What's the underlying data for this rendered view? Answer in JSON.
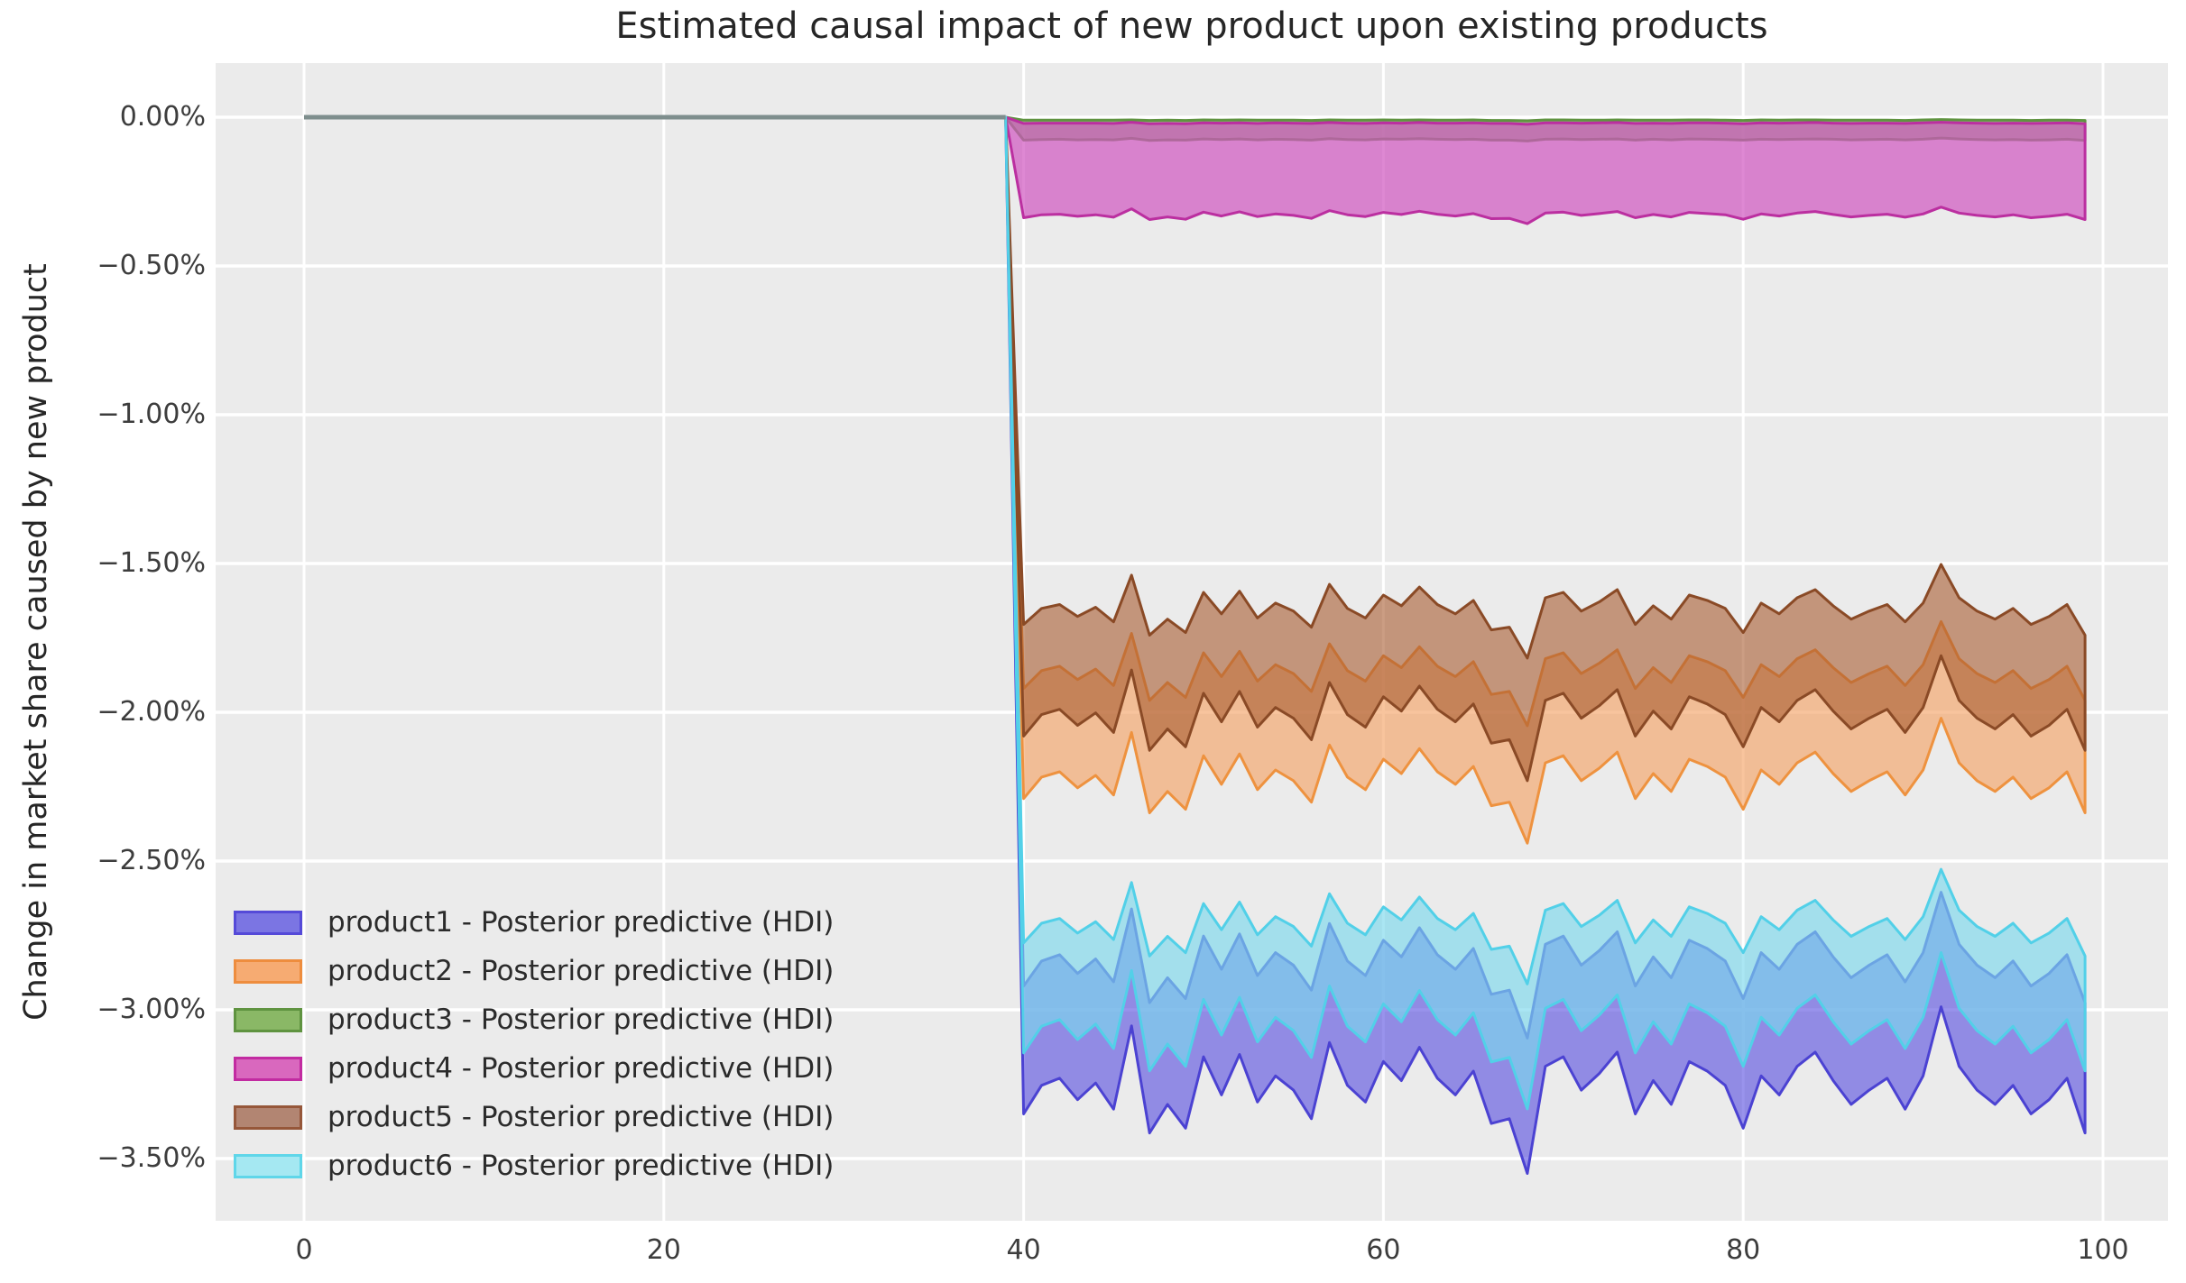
{
  "chart_data": {
    "type": "area",
    "title": "Estimated causal impact of new product upon existing products",
    "ylabel": "Change in market share caused by new product",
    "xlabel": "",
    "grid": true,
    "legend_position": "lower left",
    "panel_bg": "#ebebeb",
    "grid_color": "#ffffff",
    "zero_line": {
      "color": "#7e8e8d",
      "x_start": 0,
      "x_end": 39,
      "value": 0
    },
    "xlim": [
      -4.9,
      103.6
    ],
    "ylim_percent": [
      -3.71,
      0.18
    ],
    "x_ticks": [
      0,
      20,
      40,
      60,
      80,
      100
    ],
    "y_tick_labels": [
      "0.00%",
      "−0.50%",
      "−1.00%",
      "−1.50%",
      "−2.00%",
      "−2.50%",
      "−3.00%",
      "−3.50%"
    ],
    "y_tick_values": [
      0,
      -0.5,
      -1.0,
      -1.5,
      -2.0,
      -2.5,
      -3.0,
      -3.5
    ],
    "intervention_x": 39,
    "hdi_x": [
      40,
      41,
      42,
      43,
      44,
      45,
      46,
      47,
      48,
      49,
      50,
      51,
      52,
      53,
      54,
      55,
      56,
      57,
      58,
      59,
      60,
      61,
      62,
      63,
      64,
      65,
      66,
      67,
      68,
      69,
      70,
      71,
      72,
      73,
      74,
      75,
      76,
      77,
      78,
      79,
      80,
      81,
      82,
      83,
      84,
      85,
      86,
      87,
      88,
      89,
      90,
      91,
      92,
      93,
      94,
      95,
      96,
      97,
      98,
      99
    ],
    "series": [
      {
        "name": "product1 - Posterior predictive (HDI)",
        "key": "product1",
        "fill": "#5a50e0",
        "fill_opacity": 0.62,
        "edge": "#4b42d2",
        "legend_fill": "#7b75e3",
        "legend_edge": "#554ad8",
        "hi": [
          -2.92,
          -2.836,
          -2.815,
          -2.878,
          -2.829,
          -2.906,
          -2.661,
          -2.976,
          -2.892,
          -2.962,
          -2.752,
          -2.864,
          -2.745,
          -2.885,
          -2.808,
          -2.85,
          -2.934,
          -2.71,
          -2.836,
          -2.885,
          -2.766,
          -2.822,
          -2.724,
          -2.815,
          -2.864,
          -2.794,
          -2.948,
          -2.934,
          -3.095,
          -2.78,
          -2.752,
          -2.85,
          -2.801,
          -2.738,
          -2.92,
          -2.822,
          -2.892,
          -2.766,
          -2.794,
          -2.836,
          -2.962,
          -2.808,
          -2.864,
          -2.78,
          -2.738,
          -2.822,
          -2.892,
          -2.85,
          -2.815,
          -2.906,
          -2.808,
          -2.605,
          -2.78,
          -2.85,
          -2.892,
          -2.836,
          -2.92,
          -2.878,
          -2.815,
          -2.976
        ],
        "lo": [
          -3.35,
          -3.254,
          -3.23,
          -3.302,
          -3.246,
          -3.334,
          -3.054,
          -3.414,
          -3.318,
          -3.398,
          -3.158,
          -3.286,
          -3.15,
          -3.31,
          -3.222,
          -3.27,
          -3.366,
          -3.11,
          -3.254,
          -3.31,
          -3.174,
          -3.238,
          -3.126,
          -3.23,
          -3.286,
          -3.206,
          -3.382,
          -3.366,
          -3.55,
          -3.19,
          -3.158,
          -3.27,
          -3.214,
          -3.142,
          -3.35,
          -3.238,
          -3.318,
          -3.174,
          -3.206,
          -3.254,
          -3.398,
          -3.222,
          -3.286,
          -3.19,
          -3.142,
          -3.238,
          -3.318,
          -3.27,
          -3.23,
          -3.334,
          -3.222,
          -2.99,
          -3.19,
          -3.27,
          -3.318,
          -3.254,
          -3.35,
          -3.302,
          -3.23,
          -3.414
        ]
      },
      {
        "name": "product2 - Posterior predictive (HDI)",
        "key": "product2",
        "fill": "#f5a469",
        "fill_opacity": 0.65,
        "edge": "#ee923f",
        "legend_fill": "#f6ab72",
        "legend_edge": "#ee8d3e",
        "hi": [
          -1.92,
          -1.86,
          -1.845,
          -1.89,
          -1.855,
          -1.91,
          -1.735,
          -1.96,
          -1.9,
          -1.95,
          -1.8,
          -1.88,
          -1.795,
          -1.895,
          -1.84,
          -1.87,
          -1.93,
          -1.77,
          -1.86,
          -1.895,
          -1.81,
          -1.85,
          -1.78,
          -1.845,
          -1.88,
          -1.83,
          -1.94,
          -1.93,
          -2.045,
          -1.82,
          -1.8,
          -1.87,
          -1.835,
          -1.79,
          -1.92,
          -1.85,
          -1.9,
          -1.81,
          -1.83,
          -1.86,
          -1.95,
          -1.84,
          -1.88,
          -1.82,
          -1.79,
          -1.85,
          -1.9,
          -1.87,
          -1.845,
          -1.91,
          -1.84,
          -1.695,
          -1.82,
          -1.87,
          -1.9,
          -1.86,
          -1.92,
          -1.89,
          -1.845,
          -1.96
        ],
        "lo": [
          -2.29,
          -2.218,
          -2.2,
          -2.254,
          -2.212,
          -2.278,
          -2.068,
          -2.338,
          -2.266,
          -2.326,
          -2.146,
          -2.242,
          -2.14,
          -2.26,
          -2.194,
          -2.23,
          -2.302,
          -2.11,
          -2.218,
          -2.26,
          -2.158,
          -2.206,
          -2.122,
          -2.2,
          -2.242,
          -2.182,
          -2.314,
          -2.302,
          -2.44,
          -2.17,
          -2.146,
          -2.23,
          -2.188,
          -2.134,
          -2.29,
          -2.206,
          -2.266,
          -2.158,
          -2.182,
          -2.218,
          -2.326,
          -2.194,
          -2.242,
          -2.17,
          -2.134,
          -2.206,
          -2.266,
          -2.23,
          -2.2,
          -2.278,
          -2.194,
          -2.02,
          -2.17,
          -2.23,
          -2.266,
          -2.218,
          -2.29,
          -2.254,
          -2.2,
          -2.338
        ]
      },
      {
        "name": "product3 - Posterior predictive (HDI)",
        "key": "product3",
        "fill": "#6aa04a",
        "fill_opacity": 0.6,
        "edge": "#5f9340",
        "legend_fill": "#8ab866",
        "legend_edge": "#5f9340",
        "hi": [
          -0.01,
          -0.01,
          -0.01,
          -0.01,
          -0.01,
          -0.01,
          -0.009,
          -0.011,
          -0.01,
          -0.011,
          -0.009,
          -0.01,
          -0.009,
          -0.01,
          -0.01,
          -0.01,
          -0.011,
          -0.009,
          -0.01,
          -0.01,
          -0.009,
          -0.01,
          -0.009,
          -0.01,
          -0.01,
          -0.009,
          -0.011,
          -0.011,
          -0.012,
          -0.009,
          -0.009,
          -0.01,
          -0.01,
          -0.009,
          -0.01,
          -0.01,
          -0.01,
          -0.009,
          -0.009,
          -0.01,
          -0.011,
          -0.009,
          -0.01,
          -0.009,
          -0.009,
          -0.01,
          -0.01,
          -0.01,
          -0.01,
          -0.011,
          -0.009,
          -0.008,
          -0.009,
          -0.01,
          -0.01,
          -0.01,
          -0.011,
          -0.01,
          -0.01,
          -0.011
        ],
        "lo": [
          -0.077,
          -0.075,
          -0.074,
          -0.076,
          -0.075,
          -0.076,
          -0.071,
          -0.078,
          -0.076,
          -0.077,
          -0.073,
          -0.075,
          -0.073,
          -0.076,
          -0.074,
          -0.075,
          -0.077,
          -0.072,
          -0.075,
          -0.076,
          -0.073,
          -0.074,
          -0.072,
          -0.074,
          -0.075,
          -0.074,
          -0.077,
          -0.077,
          -0.08,
          -0.074,
          -0.073,
          -0.075,
          -0.074,
          -0.073,
          -0.077,
          -0.074,
          -0.076,
          -0.073,
          -0.074,
          -0.075,
          -0.077,
          -0.074,
          -0.075,
          -0.074,
          -0.073,
          -0.074,
          -0.076,
          -0.075,
          -0.074,
          -0.076,
          -0.074,
          -0.07,
          -0.073,
          -0.075,
          -0.076,
          -0.075,
          -0.077,
          -0.076,
          -0.074,
          -0.078
        ]
      },
      {
        "name": "product4 - Posterior predictive (HDI)",
        "key": "product4",
        "fill": "#d055c0",
        "fill_opacity": 0.7,
        "edge": "#bb2fa0",
        "legend_fill": "#d968be",
        "legend_edge": "#c22ba1",
        "hi": [
          -0.021,
          -0.02,
          -0.02,
          -0.02,
          -0.02,
          -0.021,
          -0.017,
          -0.022,
          -0.021,
          -0.022,
          -0.019,
          -0.02,
          -0.019,
          -0.021,
          -0.019,
          -0.02,
          -0.021,
          -0.018,
          -0.02,
          -0.021,
          -0.019,
          -0.02,
          -0.018,
          -0.02,
          -0.02,
          -0.019,
          -0.021,
          -0.021,
          -0.024,
          -0.019,
          -0.019,
          -0.02,
          -0.019,
          -0.018,
          -0.021,
          -0.02,
          -0.021,
          -0.019,
          -0.019,
          -0.02,
          -0.022,
          -0.019,
          -0.02,
          -0.019,
          -0.018,
          -0.02,
          -0.021,
          -0.02,
          -0.02,
          -0.021,
          -0.019,
          -0.017,
          -0.019,
          -0.02,
          -0.021,
          -0.02,
          -0.021,
          -0.02,
          -0.019,
          -0.022
        ],
        "lo": [
          -0.338,
          -0.328,
          -0.326,
          -0.333,
          -0.328,
          -0.336,
          -0.308,
          -0.344,
          -0.335,
          -0.343,
          -0.319,
          -0.332,
          -0.318,
          -0.334,
          -0.325,
          -0.33,
          -0.34,
          -0.314,
          -0.328,
          -0.334,
          -0.32,
          -0.327,
          -0.316,
          -0.326,
          -0.332,
          -0.324,
          -0.341,
          -0.34,
          -0.358,
          -0.322,
          -0.319,
          -0.33,
          -0.324,
          -0.317,
          -0.338,
          -0.327,
          -0.335,
          -0.32,
          -0.324,
          -0.328,
          -0.343,
          -0.325,
          -0.332,
          -0.322,
          -0.317,
          -0.327,
          -0.335,
          -0.33,
          -0.326,
          -0.336,
          -0.325,
          -0.302,
          -0.322,
          -0.33,
          -0.335,
          -0.328,
          -0.338,
          -0.333,
          -0.326,
          -0.344
        ]
      },
      {
        "name": "product5 - Posterior predictive (HDI)",
        "key": "product5",
        "fill": "#a85b30",
        "fill_opacity": 0.6,
        "edge": "#8a4a26",
        "legend_fill": "#b28572",
        "legend_edge": "#96573a",
        "hi": [
          -1.705,
          -1.651,
          -1.638,
          -1.678,
          -1.647,
          -1.696,
          -1.539,
          -1.741,
          -1.687,
          -1.732,
          -1.597,
          -1.669,
          -1.593,
          -1.683,
          -1.633,
          -1.66,
          -1.714,
          -1.57,
          -1.651,
          -1.683,
          -1.606,
          -1.642,
          -1.579,
          -1.638,
          -1.669,
          -1.624,
          -1.723,
          -1.714,
          -1.818,
          -1.615,
          -1.597,
          -1.66,
          -1.629,
          -1.588,
          -1.705,
          -1.642,
          -1.687,
          -1.606,
          -1.624,
          -1.651,
          -1.732,
          -1.633,
          -1.669,
          -1.615,
          -1.588,
          -1.642,
          -1.687,
          -1.66,
          -1.638,
          -1.696,
          -1.633,
          -1.503,
          -1.615,
          -1.66,
          -1.687,
          -1.651,
          -1.705,
          -1.678,
          -1.638,
          -1.741
        ],
        "lo": [
          -2.08,
          -2.008,
          -1.99,
          -2.044,
          -2.002,
          -2.068,
          -1.858,
          -2.128,
          -2.056,
          -2.116,
          -1.936,
          -2.032,
          -1.93,
          -2.05,
          -1.984,
          -2.02,
          -2.092,
          -1.9,
          -2.008,
          -2.05,
          -1.948,
          -1.996,
          -1.912,
          -1.99,
          -2.032,
          -1.972,
          -2.104,
          -2.092,
          -2.23,
          -1.96,
          -1.936,
          -2.02,
          -1.978,
          -1.924,
          -2.08,
          -1.996,
          -2.056,
          -1.948,
          -1.972,
          -2.008,
          -2.116,
          -1.984,
          -2.032,
          -1.96,
          -1.924,
          -1.996,
          -2.056,
          -2.02,
          -1.99,
          -2.068,
          -1.984,
          -1.81,
          -1.96,
          -2.02,
          -2.056,
          -2.008,
          -2.08,
          -2.044,
          -1.99,
          -2.128
        ]
      },
      {
        "name": "product6 - Posterior predictive (HDI)",
        "key": "product6",
        "fill": "#7cd9ec",
        "fill_opacity": 0.65,
        "edge": "#52d0e8",
        "legend_fill": "#a5e8f2",
        "legend_edge": "#5fd6e9",
        "hi": [
          -2.775,
          -2.709,
          -2.693,
          -2.742,
          -2.704,
          -2.764,
          -2.572,
          -2.819,
          -2.753,
          -2.808,
          -2.643,
          -2.731,
          -2.638,
          -2.748,
          -2.687,
          -2.72,
          -2.786,
          -2.61,
          -2.709,
          -2.748,
          -2.654,
          -2.698,
          -2.621,
          -2.693,
          -2.731,
          -2.676,
          -2.797,
          -2.786,
          -2.913,
          -2.665,
          -2.643,
          -2.72,
          -2.682,
          -2.632,
          -2.775,
          -2.698,
          -2.753,
          -2.654,
          -2.676,
          -2.709,
          -2.808,
          -2.687,
          -2.731,
          -2.665,
          -2.632,
          -2.698,
          -2.753,
          -2.72,
          -2.693,
          -2.764,
          -2.687,
          -2.528,
          -2.665,
          -2.72,
          -2.753,
          -2.709,
          -2.775,
          -2.742,
          -2.693,
          -2.819
        ],
        "lo": [
          -3.145,
          -3.055,
          -3.033,
          -3.1,
          -3.048,
          -3.13,
          -2.868,
          -3.205,
          -3.115,
          -3.19,
          -2.965,
          -3.085,
          -2.958,
          -3.108,
          -3.025,
          -3.07,
          -3.16,
          -2.92,
          -3.055,
          -3.108,
          -2.98,
          -3.04,
          -2.935,
          -3.033,
          -3.085,
          -3.01,
          -3.175,
          -3.16,
          -3.333,
          -2.995,
          -2.965,
          -3.07,
          -3.018,
          -2.95,
          -3.145,
          -3.04,
          -3.115,
          -2.98,
          -3.01,
          -3.055,
          -3.19,
          -3.025,
          -3.085,
          -2.995,
          -2.95,
          -3.04,
          -3.115,
          -3.07,
          -3.033,
          -3.13,
          -3.025,
          -2.808,
          -2.995,
          -3.07,
          -3.115,
          -3.055,
          -3.145,
          -3.1,
          -3.033,
          -3.205
        ]
      }
    ]
  }
}
